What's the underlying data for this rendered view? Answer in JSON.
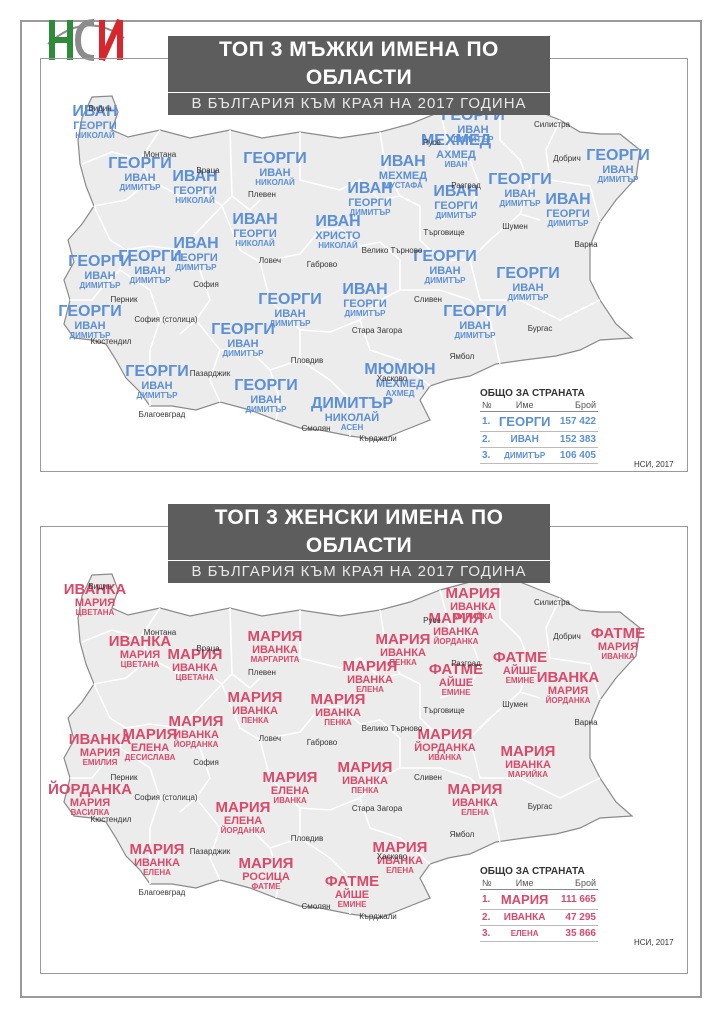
{
  "logo": {
    "text": "НСИ",
    "colors": {
      "green": "#2e8b3a",
      "red": "#d9262c",
      "gray": "#8c8c8c"
    }
  },
  "colors": {
    "male": "#5b8fd6",
    "female": "#d94a6a",
    "map_fill": "#ececec",
    "border": "#9a9a9a"
  },
  "male": {
    "title": "ТОП 3 МЪЖКИ ИМЕНА ПО ОБЛАСТИ",
    "subtitle": "В БЪЛГАРИЯ КЪМ    КРАЯ НА 2017 ГОДИНА",
    "credit": "НСИ, 2017",
    "totals": {
      "title": "ОБЩО ЗА СТРАНАТА",
      "headers": [
        "№",
        "Име",
        "Брой"
      ],
      "rows": [
        {
          "n": "1.",
          "name": "ГЕОРГИ",
          "count": "157 422"
        },
        {
          "n": "2.",
          "name": "ИВАН",
          "count": "152 383"
        },
        {
          "n": "3.",
          "name": "ДИМИТЪР",
          "count": "106 405"
        }
      ]
    },
    "regions": [
      {
        "n1": "ИВАН",
        "n2": "ГЕОРГИ",
        "n3": "НИКОЛАЙ"
      },
      {
        "n1": "ГЕОРГИ",
        "n2": "ИВАН",
        "n3": "ДИМИТЪР"
      },
      {
        "n1": "ИВАН",
        "n2": "ГЕОРГИ",
        "n3": "НИКОЛАЙ"
      },
      {
        "n1": "ГЕОРГИ",
        "n2": "ИВАН",
        "n3": "НИКОЛАЙ"
      },
      {
        "n1": "ИВАН",
        "n2": "ГЕОРГИ",
        "n3": "НИКОЛАЙ"
      },
      {
        "n1": "ИВАН",
        "n2": "ГЕОРГИ",
        "n3": "ДИМИТЪР"
      },
      {
        "n1": "ГЕОРГИ",
        "n2": "ИВАН",
        "n3": "ДИМИТЪР"
      },
      {
        "n1": "ИВАН",
        "n2": "ХРИСТО",
        "n3": "НИКОЛАЙ"
      },
      {
        "n1": "ГЕОРГИ",
        "n2": "ИВАН",
        "n3": "ДИМИТЪР"
      },
      {
        "n1": "ГЕОРГИ",
        "n2": "ИВАН",
        "n3": "ДИМИТЪР"
      },
      {
        "n1": "ГЕОРГИ",
        "n2": "ИВАН",
        "n3": "ДИМИТЪР"
      },
      {
        "n1": "ГЕОРГИ",
        "n2": "ИВАН",
        "n3": "ДИМИТЪР"
      },
      {
        "n1": "ГЕОРГИ",
        "n2": "ИВАН",
        "n3": "ДИМИТЪР"
      },
      {
        "n1": "ИВАН",
        "n2": "ГЕОРГИ",
        "n3": "ДИМИТЪР"
      },
      {
        "n1": "ГЕОРГИ",
        "n2": "ИВАН",
        "n3": "ДИМИТЪР"
      },
      {
        "n1": "ДИМИТЪР",
        "n2": "НИКОЛАЙ",
        "n3": "АСЕН"
      },
      {
        "n1": "МЮМЮН",
        "n2": "МЕХМЕД",
        "n3": "АХМЕД"
      },
      {
        "n1": "ГЕОРГИ",
        "n2": "ИВАН",
        "n3": "ДИМИТЪР"
      },
      {
        "n1": "ИВАН",
        "n2": "ГЕОРГИ",
        "n3": "ДИМИТЪР"
      },
      {
        "n1": "ИВАН",
        "n2": "МЕХМЕД",
        "n3": "МУСТАФА"
      },
      {
        "n1": "ГЕОРГИ",
        "n2": "ИВАН",
        "n3": "ДИМИТЪР"
      },
      {
        "n1": "МЕХМЕД",
        "n2": "АХМЕД",
        "n3": "ИВАН"
      },
      {
        "n1": "ГЕОРГИ",
        "n2": "ИВАН",
        "n3": "ДИМИТЪР"
      },
      {
        "n1": "ИВАН",
        "n2": "ГЕОРГИ",
        "n3": "ДИМИТЪР"
      },
      {
        "n1": "ГЕОРГИ",
        "n2": "ИВАН",
        "n3": "ДИМИТЪР"
      },
      {
        "n1": "ГЕОРГИ",
        "n2": "ИВАН",
        "n3": "ДИМИТЪР"
      },
      {
        "n1": "ГЕОРГИ",
        "n2": "ИВАН",
        "n3": "ДИМИТЪР"
      },
      {
        "n1": "ИВАН",
        "n2": "ГЕОРГИ",
        "n3": "ДИМИТЪР"
      }
    ]
  },
  "female": {
    "title": "ТОП 3 ЖЕНСКИ ИМЕНА ПО ОБЛАСТИ",
    "subtitle": "В БЪЛГАРИЯ КЪМ КРАЯ НА 2017 ГОДИНА",
    "credit": "НСИ, 2017",
    "totals": {
      "title": "ОБЩО ЗА СТРАНАТА",
      "headers": [
        "№",
        "Име",
        "Брой"
      ],
      "rows": [
        {
          "n": "1.",
          "name": "МАРИЯ",
          "count": "111 665"
        },
        {
          "n": "2.",
          "name": "ИВАНКА",
          "count": "47 295"
        },
        {
          "n": "3.",
          "name": "ЕЛЕНА",
          "count": "35 866"
        }
      ]
    },
    "regions": [
      {
        "n1": "ИВАНКА",
        "n2": "МАРИЯ",
        "n3": "ЦВЕТАНА"
      },
      {
        "n1": "ИВАНКА",
        "n2": "МАРИЯ",
        "n3": "ЦВЕТАНА"
      },
      {
        "n1": "МАРИЯ",
        "n2": "ИВАНКА",
        "n3": "ЦВЕТАНА"
      },
      {
        "n1": "МАРИЯ",
        "n2": "ИВАНКА",
        "n3": "МАРГАРИТА"
      },
      {
        "n1": "МАРИЯ",
        "n2": "ИВАНКА",
        "n3": "ПЕНКА"
      },
      {
        "n1": "МАРИЯ",
        "n2": "ИВАНКА",
        "n3": "ЙОРДАНКА"
      },
      {
        "n1": "МАРИЯ",
        "n2": "ЕЛЕНА",
        "n3": "ДЕСИСЛАВА"
      },
      {
        "n1": "МАРИЯ",
        "n2": "ИВАНКА",
        "n3": "ПЕНКА"
      },
      {
        "n1": "ИВАНКА",
        "n2": "МАРИЯ",
        "n3": "ЕМИЛИЯ"
      },
      {
        "n1": "ЙОРДАНКА",
        "n2": "МАРИЯ",
        "n3": "ВАСИЛКА"
      },
      {
        "n1": "МАРИЯ",
        "n2": "ЕЛЕНА",
        "n3": "ЙОРДАНКА"
      },
      {
        "n1": "МАРИЯ",
        "n2": "ИВАНКА",
        "n3": "ЕЛЕНА"
      },
      {
        "n1": "МАРИЯ",
        "n2": "ЕЛЕНА",
        "n3": "ИВАНКА"
      },
      {
        "n1": "МАРИЯ",
        "n2": "ИВАНКА",
        "n3": "ПЕНКА"
      },
      {
        "n1": "МАРИЯ",
        "n2": "РОСИЦА",
        "n3": "ФАТМЕ"
      },
      {
        "n1": "ФАТМЕ",
        "n2": "АЙШЕ",
        "n3": "ЕМИНЕ"
      },
      {
        "n1": "МАРИЯ",
        "n2": "ИВАНКА",
        "n3": "ЕЛЕНА"
      },
      {
        "n1": "МАРИЯ",
        "n2": "ЙОРДАНКА",
        "n3": "ИВАНКА"
      },
      {
        "n1": "ФАТМЕ",
        "n2": "АЙШЕ",
        "n3": "ЕМИНЕ"
      },
      {
        "n1": "МАРИЯ",
        "n2": "ИВАНКА",
        "n3": "ПЕНКА"
      },
      {
        "n1": "МАРИЯ",
        "n2": "ИВАНКА",
        "n3": "МАРИЙКА"
      },
      {
        "n1": "МАРИЯ",
        "n2": "ИВАНКА",
        "n3": "ЙОРДАНКА"
      },
      {
        "n1": "ФАТМЕ",
        "n2": "АЙШЕ",
        "n3": "ЕМИНЕ"
      },
      {
        "n1": "ИВАНКА",
        "n2": "МАРИЯ",
        "n3": "ЙОРДАНКА"
      },
      {
        "n1": "ФАТМЕ",
        "n2": "МАРИЯ",
        "n3": "ИВАНКА"
      },
      {
        "n1": "МАРИЯ",
        "n2": "ИВАНКА",
        "n3": "МАРИЙКА"
      },
      {
        "n1": "МАРИЯ",
        "n2": "ИВАНКА",
        "n3": "ЕЛЕНА"
      },
      {
        "n1": "МАРИЯ",
        "n2": "ИВАНКА",
        "n3": "ЕЛЕНА"
      }
    ]
  },
  "cities": [
    "Видин",
    "Монтана",
    "Враца",
    "Плевен",
    "Ловеч",
    "Габрово",
    "Велико Търново",
    "Русе",
    "Разград",
    "Силистра",
    "Добрич",
    "Шумен",
    "Търговище",
    "Варна",
    "София",
    "Перник",
    "Кюстендил",
    "София (столица)",
    "Благоевград",
    "Пазарджик",
    "Пловдив",
    "Смолян",
    "Кърджали",
    "Хасково",
    "Стара Загора",
    "Сливен",
    "Ямбол",
    "Бургас"
  ]
}
